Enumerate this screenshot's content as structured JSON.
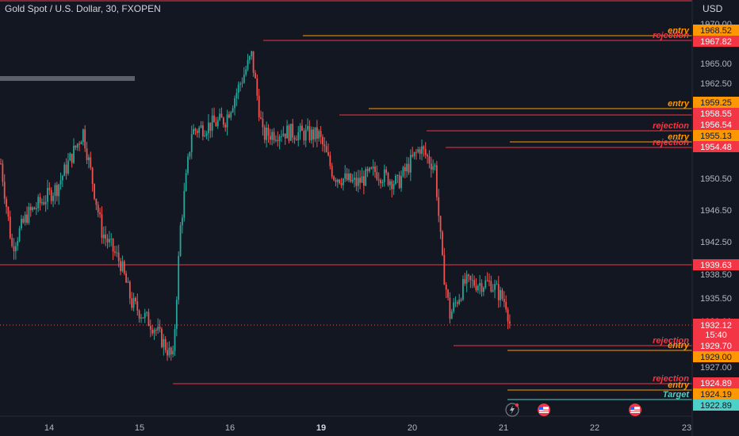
{
  "header": {
    "symbol": "Gold Spot / U.S. Dollar, 30, FXOPEN",
    "currency": "USD"
  },
  "colors": {
    "background": "#131722",
    "up": "#26a69a",
    "down": "#ef5350",
    "red_line": "#f23645",
    "orange_line": "#ff9800",
    "teal_line": "#4dd0c7",
    "price_tag": "#f23645",
    "grid_text": "#b2b5be"
  },
  "chart_data": {
    "type": "candlestick",
    "ylim": [
      1921.0,
      1970.8
    ],
    "y_ticks": [
      "1970.00",
      "1965.00",
      "1962.50",
      "1950.50",
      "1946.50",
      "1942.50",
      "1938.50",
      "1935.50",
      "1930.00",
      "1927.00"
    ],
    "x_ticks": [
      {
        "label": "14",
        "bold": false
      },
      {
        "label": "15",
        "bold": false
      },
      {
        "label": "16",
        "bold": false
      },
      {
        "label": "19",
        "bold": true
      },
      {
        "label": "20",
        "bold": false
      },
      {
        "label": "21",
        "bold": false
      },
      {
        "label": "22",
        "bold": false
      },
      {
        "label": "23",
        "bold": false
      }
    ],
    "keypoints": [
      {
        "i": 0,
        "p": 1952.5
      },
      {
        "i": 6,
        "p": 1942.0
      },
      {
        "i": 14,
        "p": 1946.0
      },
      {
        "i": 30,
        "p": 1949.5
      },
      {
        "i": 44,
        "p": 1956.5
      },
      {
        "i": 54,
        "p": 1944.0
      },
      {
        "i": 64,
        "p": 1940.0
      },
      {
        "i": 70,
        "p": 1935.0
      },
      {
        "i": 82,
        "p": 1932.0
      },
      {
        "i": 92,
        "p": 1928.0
      },
      {
        "i": 96,
        "p": 1944.5
      },
      {
        "i": 102,
        "p": 1956.5
      },
      {
        "i": 120,
        "p": 1958.0
      },
      {
        "i": 134,
        "p": 1966.0
      },
      {
        "i": 140,
        "p": 1956.0
      },
      {
        "i": 150,
        "p": 1956.5
      },
      {
        "i": 170,
        "p": 1956.0
      },
      {
        "i": 178,
        "p": 1951.0
      },
      {
        "i": 190,
        "p": 1950.0
      },
      {
        "i": 200,
        "p": 1951.5
      },
      {
        "i": 212,
        "p": 1950.0
      },
      {
        "i": 224,
        "p": 1954.5
      },
      {
        "i": 232,
        "p": 1952.0
      },
      {
        "i": 236,
        "p": 1940.0
      },
      {
        "i": 240,
        "p": 1933.5
      },
      {
        "i": 248,
        "p": 1937.5
      },
      {
        "i": 262,
        "p": 1937.5
      },
      {
        "i": 270,
        "p": 1935.0
      },
      {
        "i": 272,
        "p": 1932.5
      }
    ],
    "candle_count": 273,
    "last_price": "1932.12",
    "countdown": "15:40",
    "levels": [
      {
        "price": 1968.52,
        "label": "1968.52",
        "color": "orange",
        "text": "entry",
        "x_start": 382
      },
      {
        "price": 1967.82,
        "label": "1967.82",
        "color": "red",
        "text": "rejection",
        "x_start": 332
      },
      {
        "price": 1959.25,
        "label": "1959.25",
        "color": "orange",
        "text": "entry",
        "x_start": 465
      },
      {
        "price": 1958.55,
        "label": "1958.55",
        "color": "red",
        "text": "",
        "x_start": 428
      },
      {
        "price": 1956.54,
        "label": "1956.54",
        "color": "red",
        "text": "rejection",
        "x_start": 538
      },
      {
        "price": 1955.13,
        "label": "1955.13",
        "color": "orange",
        "text": "entry",
        "x_start": 643
      },
      {
        "price": 1954.48,
        "label": "1954.48",
        "color": "red",
        "text": "rejection",
        "x_start": 562
      },
      {
        "price": 1939.63,
        "label": "1939.63",
        "color": "red",
        "text": "",
        "x_start": 0
      },
      {
        "price": 1929.7,
        "label": "1929.70",
        "color": "red",
        "text": "rejection",
        "x_start": 572
      },
      {
        "price": 1929.0,
        "label": "1929.00",
        "color": "orange",
        "text": "entry",
        "x_start": 640
      },
      {
        "price": 1924.89,
        "label": "1924.89",
        "color": "red",
        "text": "rejection",
        "x_start": 218
      },
      {
        "price": 1924.19,
        "label": "1924.19",
        "color": "orange",
        "text": "entry",
        "x_start": 640
      },
      {
        "price": 1922.89,
        "label": "1922.89",
        "color": "teal",
        "text": "Target",
        "x_start": 640
      }
    ]
  }
}
